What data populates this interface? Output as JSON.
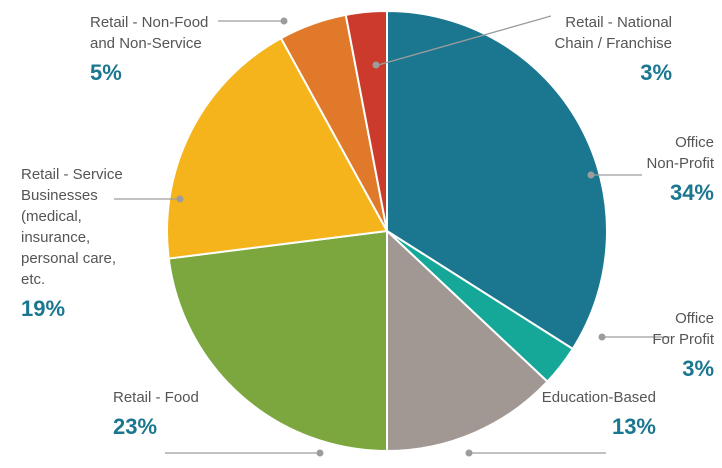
{
  "chart_data": {
    "type": "pie",
    "title": "",
    "start_angle_deg": 0,
    "direction": "clockwise",
    "slices": [
      {
        "label_lines": [
          "Office",
          "Non-Profit"
        ],
        "value": 34,
        "display": "34%",
        "color": "#1a778f"
      },
      {
        "label_lines": [
          "Office",
          "For Profit"
        ],
        "value": 3,
        "display": "3%",
        "color": "#15a899"
      },
      {
        "label_lines": [
          "Education-Based"
        ],
        "value": 13,
        "display": "13%",
        "color": "#a19893"
      },
      {
        "label_lines": [
          "Retail - Food"
        ],
        "value": 23,
        "display": "23%",
        "color": "#7ba73e"
      },
      {
        "label_lines": [
          "Retail - Service",
          "Businesses",
          "(medical,",
          "insurance,",
          "personal care,",
          "etc."
        ],
        "value": 19,
        "display": "19%",
        "color": "#f5b41b"
      },
      {
        "label_lines": [
          "Retail - Non-Food",
          "and Non-Service"
        ],
        "value": 5,
        "display": "5%",
        "color": "#e07a2a"
      },
      {
        "label_lines": [
          "Retail - National",
          "Chain / Franchise"
        ],
        "value": 3,
        "display": "3%",
        "color": "#cc3a2c"
      }
    ],
    "label_color": "#555555",
    "percent_color": "#1a778f"
  }
}
